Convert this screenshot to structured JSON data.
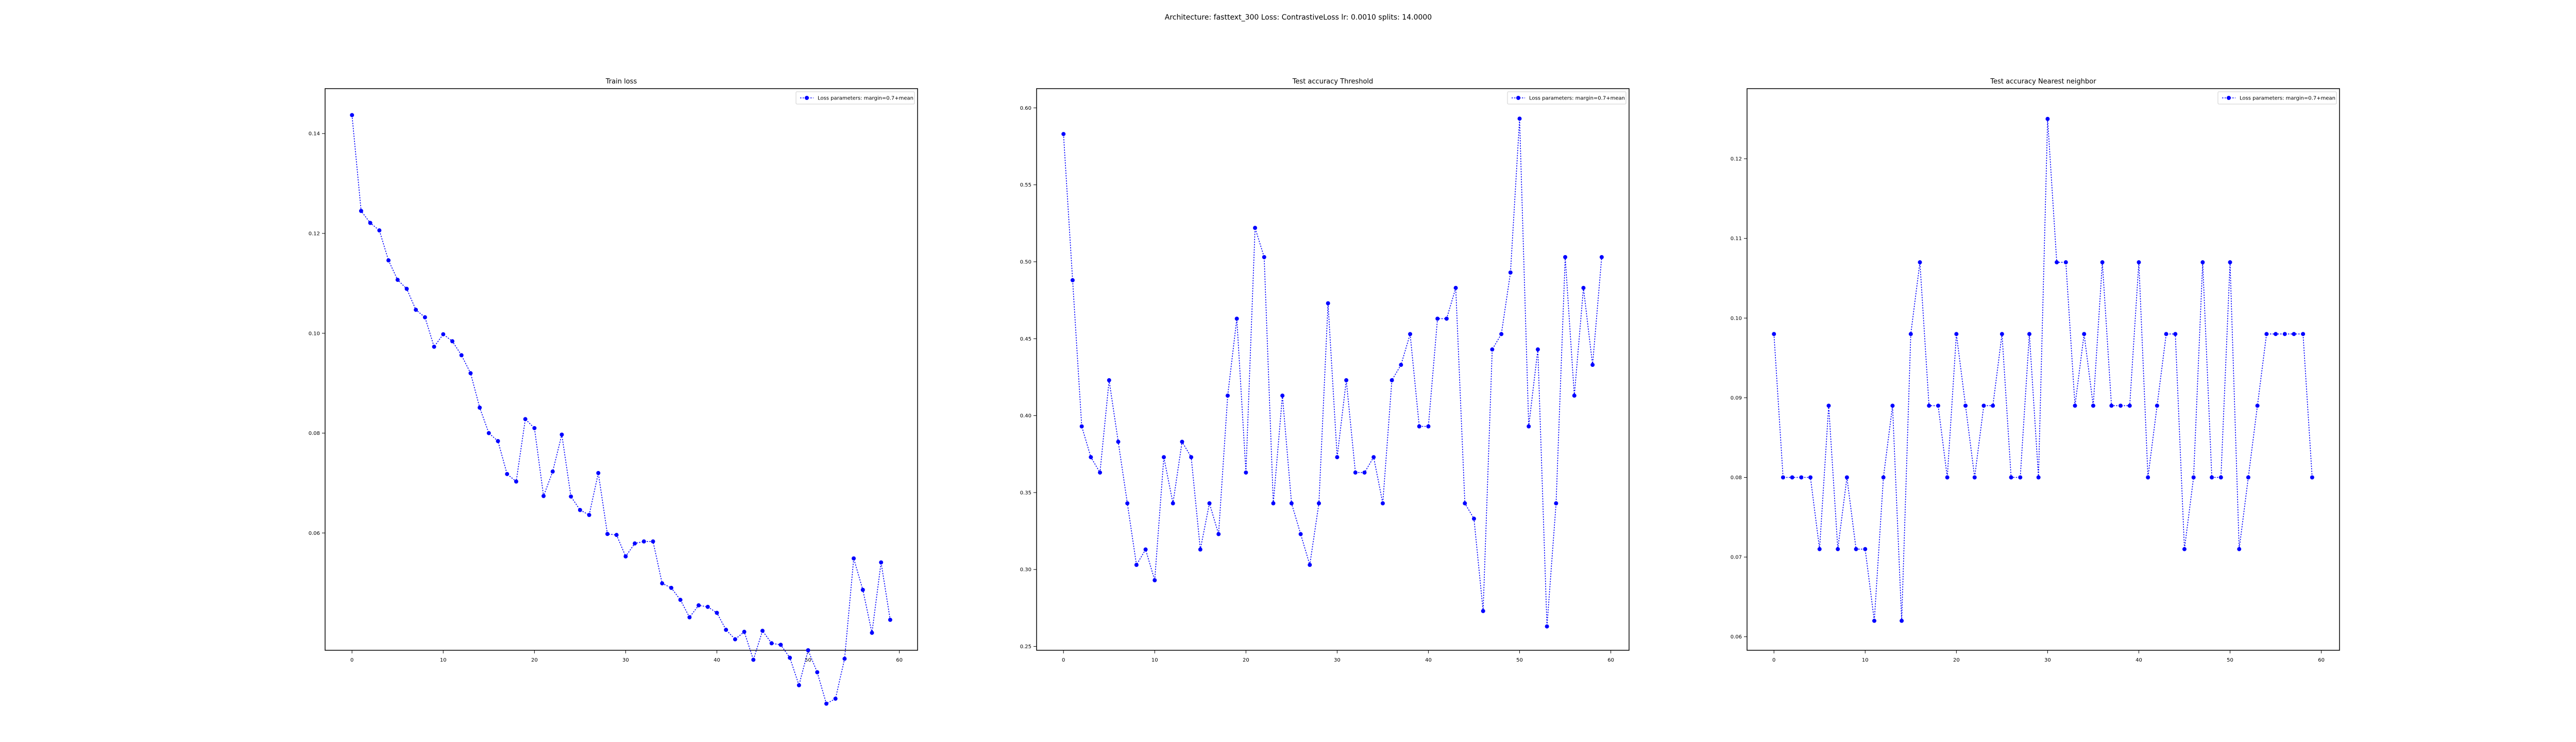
{
  "figure": {
    "suptitle": "Architecture: fasttext_300 Loss: ContrastiveLoss lr: 0.0010 splits: 14.0000"
  },
  "colors": {
    "series": "#0000ff",
    "axes": "#000000",
    "background": "#ffffff"
  },
  "chart_data": [
    {
      "type": "line",
      "title": "Train loss",
      "xlabel": "",
      "ylabel": "",
      "grid": false,
      "legend_position": "top-right",
      "xlim": [
        -2.95,
        62.0
      ],
      "ylim": [
        0.0365,
        0.149
      ],
      "xticks": [
        0,
        10,
        20,
        30,
        40,
        50,
        60
      ],
      "xtick_labels": [
        "0",
        "10",
        "20",
        "30",
        "40",
        "50",
        "60"
      ],
      "yticks": [
        0.06,
        0.08,
        0.1,
        0.12,
        0.14
      ],
      "ytick_labels": [
        "0.06",
        "0.08",
        "0.10",
        "0.12",
        "0.14"
      ],
      "series": [
        {
          "name": "Loss parameters: margin=0.7+mean",
          "marker": "o",
          "linestyle": "dotted",
          "x": [
            0,
            1,
            2,
            3,
            4,
            5,
            6,
            7,
            8,
            9,
            10,
            11,
            12,
            13,
            14,
            15,
            16,
            17,
            18,
            19,
            20,
            21,
            22,
            23,
            24,
            25,
            26,
            27,
            28,
            29,
            30,
            31,
            32,
            33,
            34,
            35,
            36,
            37,
            38,
            39,
            40,
            41,
            42,
            43,
            44,
            45,
            46,
            47,
            48,
            49,
            50,
            51,
            52,
            53,
            54,
            55,
            56,
            57,
            58,
            59
          ],
          "values": [
            0.1437,
            0.1245,
            0.1221,
            0.1206,
            0.1146,
            0.1107,
            0.1089,
            0.1047,
            0.1032,
            0.0973,
            0.0998,
            0.0984,
            0.0956,
            0.092,
            0.0851,
            0.08,
            0.0784,
            0.0718,
            0.0703,
            0.0828,
            0.081,
            0.0674,
            0.0723,
            0.0797,
            0.0673,
            0.0646,
            0.0636,
            0.072,
            0.0598,
            0.0596,
            0.0553,
            0.0579,
            0.0583,
            0.0583,
            0.0499,
            0.049,
            0.0466,
            0.0431,
            0.0455,
            0.0452,
            0.044,
            0.0406,
            0.0387,
            0.0402,
            0.0346,
            0.0404,
            0.0379,
            0.0376,
            0.035,
            0.0295,
            0.0365,
            0.0321,
            0.0258,
            0.0268,
            0.0348,
            0.0549,
            0.0486,
            0.04,
            0.0541,
            0.0426
          ]
        }
      ]
    },
    {
      "type": "line",
      "title": "Test accuracy Threshold",
      "xlabel": "",
      "ylabel": "",
      "grid": false,
      "legend_position": "top-right",
      "xlim": [
        -2.95,
        62.0
      ],
      "ylim": [
        0.2475,
        0.6125
      ],
      "xticks": [
        0,
        10,
        20,
        30,
        40,
        50,
        60
      ],
      "xtick_labels": [
        "0",
        "10",
        "20",
        "30",
        "40",
        "50",
        "60"
      ],
      "yticks": [
        0.25,
        0.3,
        0.35,
        0.4,
        0.45,
        0.5,
        0.55,
        0.6
      ],
      "ytick_labels": [
        "0.25",
        "0.30",
        "0.35",
        "0.40",
        "0.45",
        "0.50",
        "0.55",
        "0.60"
      ],
      "series": [
        {
          "name": "Loss parameters: margin=0.7+mean",
          "marker": "o",
          "linestyle": "dotted",
          "x": [
            0,
            1,
            2,
            3,
            4,
            5,
            6,
            7,
            8,
            9,
            10,
            11,
            12,
            13,
            14,
            15,
            16,
            17,
            18,
            19,
            20,
            21,
            22,
            23,
            24,
            25,
            26,
            27,
            28,
            29,
            30,
            31,
            32,
            33,
            34,
            35,
            36,
            37,
            38,
            39,
            40,
            41,
            42,
            43,
            44,
            45,
            46,
            47,
            48,
            49,
            50,
            51,
            52,
            53,
            54,
            55,
            56,
            57,
            58,
            59
          ],
          "values": [
            0.583,
            0.488,
            0.393,
            0.373,
            0.363,
            0.423,
            0.383,
            0.343,
            0.303,
            0.313,
            0.293,
            0.373,
            0.343,
            0.383,
            0.373,
            0.313,
            0.343,
            0.323,
            0.413,
            0.463,
            0.363,
            0.522,
            0.503,
            0.343,
            0.413,
            0.343,
            0.323,
            0.303,
            0.343,
            0.473,
            0.373,
            0.423,
            0.363,
            0.363,
            0.373,
            0.343,
            0.423,
            0.433,
            0.453,
            0.393,
            0.393,
            0.463,
            0.463,
            0.483,
            0.343,
            0.333,
            0.273,
            0.443,
            0.453,
            0.493,
            0.593,
            0.393,
            0.443,
            0.263,
            0.343,
            0.503,
            0.413,
            0.483,
            0.433,
            0.503
          ]
        }
      ]
    },
    {
      "type": "line",
      "title": "Test accuracy Nearest neighbor",
      "xlabel": "",
      "ylabel": "",
      "grid": false,
      "legend_position": "top-right",
      "xlim": [
        -2.95,
        62.0
      ],
      "ylim": [
        0.0583,
        0.1288
      ],
      "xticks": [
        0,
        10,
        20,
        30,
        40,
        50,
        60
      ],
      "xtick_labels": [
        "0",
        "10",
        "20",
        "30",
        "40",
        "50",
        "60"
      ],
      "yticks": [
        0.06,
        0.07,
        0.08,
        0.09,
        0.1,
        0.11,
        0.12
      ],
      "ytick_labels": [
        "0.06",
        "0.07",
        "0.08",
        "0.09",
        "0.10",
        "0.11",
        "0.12"
      ],
      "series": [
        {
          "name": "Loss parameters: margin=0.7+mean",
          "marker": "o",
          "linestyle": "dotted",
          "x": [
            0,
            1,
            2,
            3,
            4,
            5,
            6,
            7,
            8,
            9,
            10,
            11,
            12,
            13,
            14,
            15,
            16,
            17,
            18,
            19,
            20,
            21,
            22,
            23,
            24,
            25,
            26,
            27,
            28,
            29,
            30,
            31,
            32,
            33,
            34,
            35,
            36,
            37,
            38,
            39,
            40,
            41,
            42,
            43,
            44,
            45,
            46,
            47,
            48,
            49,
            50,
            51,
            52,
            53,
            54,
            55,
            56,
            57,
            58,
            59
          ],
          "values": [
            0.098,
            0.08,
            0.08,
            0.08,
            0.08,
            0.071,
            0.089,
            0.071,
            0.08,
            0.071,
            0.071,
            0.062,
            0.08,
            0.089,
            0.062,
            0.098,
            0.107,
            0.089,
            0.089,
            0.08,
            0.098,
            0.089,
            0.08,
            0.089,
            0.089,
            0.098,
            0.08,
            0.08,
            0.098,
            0.08,
            0.125,
            0.107,
            0.107,
            0.089,
            0.098,
            0.089,
            0.107,
            0.089,
            0.089,
            0.089,
            0.107,
            0.08,
            0.089,
            0.098,
            0.098,
            0.071,
            0.08,
            0.107,
            0.08,
            0.08,
            0.107,
            0.071,
            0.08,
            0.089,
            0.098,
            0.098,
            0.098,
            0.098,
            0.098,
            0.08
          ]
        }
      ]
    }
  ]
}
